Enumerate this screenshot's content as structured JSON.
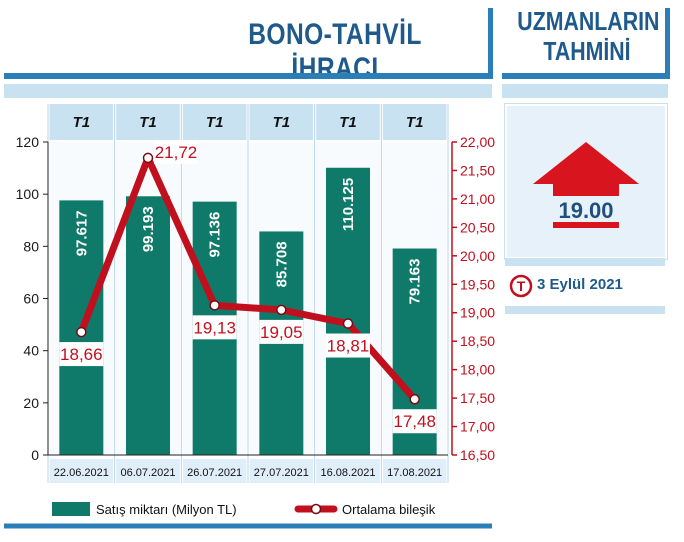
{
  "header": {
    "title": "BONO-TAHVİL İHRACI",
    "side_title_line1": "UZMANLARIN",
    "side_title_line2": "TAHMİNİ"
  },
  "forecast": {
    "value": "19.00",
    "direction": "up",
    "date": "3 Eylül 2021",
    "logo_letter": "T"
  },
  "colors": {
    "bar": "#0f7a69",
    "line": "#c0101e",
    "title": "#1f5a8c",
    "accent_blue": "#2b7fb8"
  },
  "chart_data": {
    "type": "bar",
    "categories": [
      "22.06.2021",
      "06.07.2021",
      "26.07.2021",
      "27.07.2021",
      "16.08.2021",
      "17.08.2021"
    ],
    "column_headers": [
      "T1",
      "T1",
      "T1",
      "T1",
      "T1",
      "T1"
    ],
    "series": [
      {
        "name": "Satış miktarı (Milyon TL)",
        "type": "bar",
        "axis": "left",
        "values": [
          97.617,
          99.193,
          97.136,
          85.708,
          110.125,
          79.163
        ],
        "labels": [
          "97.617",
          "99.193",
          "97.136",
          "85.708",
          "110.125",
          "79.163"
        ]
      },
      {
        "name": "Ortalama bileşik",
        "type": "line",
        "axis": "right",
        "values": [
          18.66,
          21.72,
          19.13,
          19.05,
          18.81,
          17.48
        ],
        "labels": [
          "18,66",
          "21,72",
          "19,13",
          "19,05",
          "18,81",
          "17,48"
        ]
      }
    ],
    "y_left": {
      "range": [
        0,
        120
      ],
      "ticks": [
        0,
        20,
        40,
        60,
        80,
        100,
        120
      ],
      "tick_labels": [
        "0",
        "20",
        "40",
        "60",
        "80",
        "100",
        "120"
      ]
    },
    "y_right": {
      "range": [
        16.5,
        22.0
      ],
      "ticks": [
        16.5,
        17.0,
        17.5,
        18.0,
        18.5,
        19.0,
        19.5,
        20.0,
        20.5,
        21.0,
        21.5,
        22.0
      ],
      "tick_labels": [
        "16,50",
        "17,00",
        "17,50",
        "18,00",
        "18,50",
        "19,00",
        "19,50",
        "20,00",
        "20,50",
        "21,00",
        "21,50",
        "22,00"
      ]
    },
    "grid": false,
    "legend_position": "bottom"
  }
}
